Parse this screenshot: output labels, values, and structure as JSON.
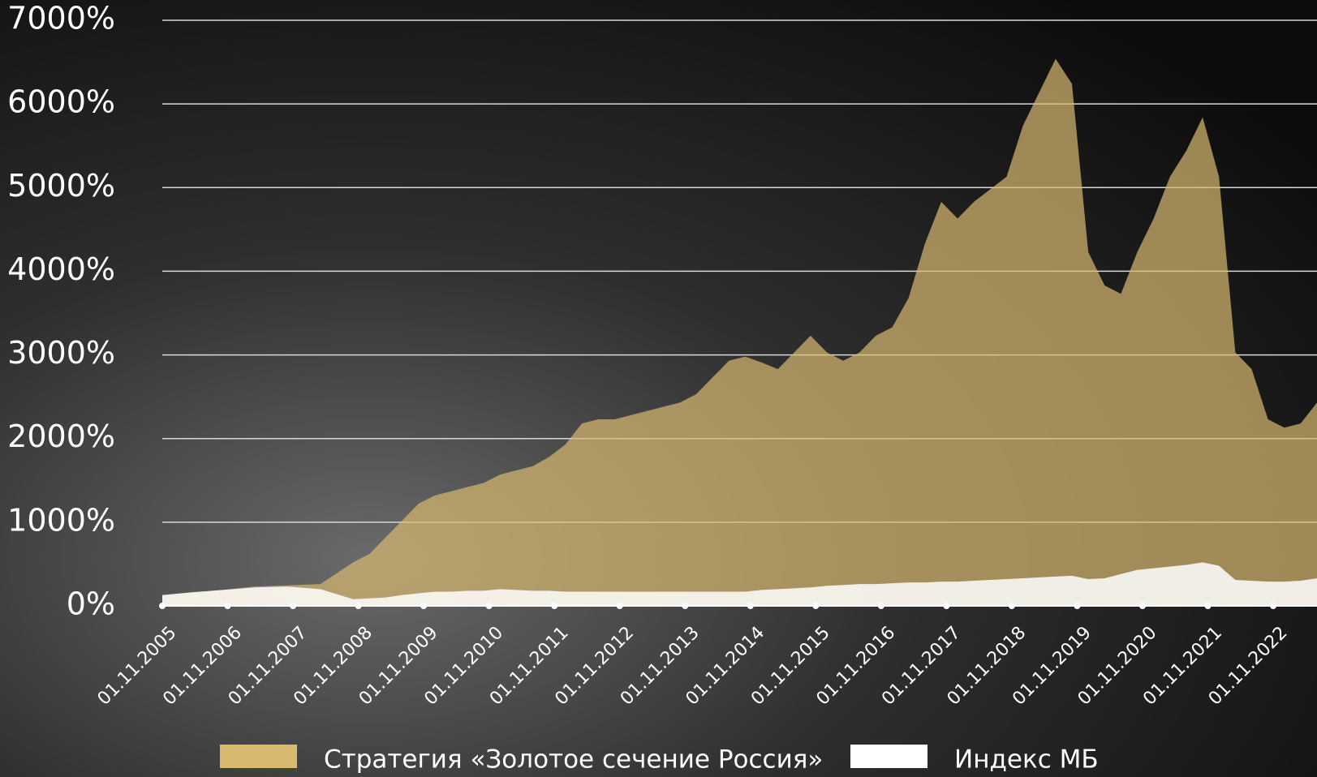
{
  "chart_data": {
    "type": "area",
    "x": [
      2005.83,
      2006.25,
      2006.75,
      2007.25,
      2007.75,
      2008.25,
      2008.75,
      2009.0,
      2009.25,
      2009.5,
      2009.75,
      2010.0,
      2010.25,
      2010.5,
      2010.75,
      2011.0,
      2011.25,
      2011.5,
      2011.75,
      2012.0,
      2012.25,
      2012.5,
      2012.75,
      2013.0,
      2013.25,
      2013.5,
      2013.75,
      2014.0,
      2014.25,
      2014.5,
      2014.75,
      2015.0,
      2015.25,
      2015.5,
      2015.75,
      2016.0,
      2016.25,
      2016.5,
      2016.75,
      2017.0,
      2017.25,
      2017.5,
      2017.75,
      2018.0,
      2018.25,
      2018.5,
      2018.75,
      2019.0,
      2019.25,
      2019.5,
      2019.75,
      2020.0,
      2020.25,
      2020.5,
      2020.75,
      2021.0,
      2021.25,
      2021.5,
      2021.75,
      2022.0,
      2022.25,
      2022.5,
      2022.75,
      2023.0,
      2023.25,
      2023.5
    ],
    "series": [
      {
        "name": "Стратегия «Золотое сечение Россия»",
        "color": "#d9b970",
        "values": [
          120,
          160,
          190,
          230,
          245,
          260,
          520,
          620,
          820,
          1020,
          1220,
          1320,
          1370,
          1420,
          1470,
          1570,
          1620,
          1670,
          1780,
          1930,
          2180,
          2230,
          2230,
          2280,
          2330,
          2380,
          2430,
          2530,
          2730,
          2930,
          2980,
          2910,
          2830,
          3030,
          3230,
          3030,
          2930,
          3030,
          3230,
          3330,
          3680,
          4330,
          4830,
          4630,
          4830,
          4980,
          5130,
          5740,
          6140,
          6540,
          6240,
          4230,
          3830,
          3730,
          4230,
          4630,
          5130,
          5440,
          5840,
          5130,
          3030,
          2830,
          2230,
          2130,
          2180,
          2430
        ]
      },
      {
        "name": "Индекс МБ",
        "color": "#ffffff",
        "values": [
          130,
          160,
          190,
          220,
          230,
          200,
          80,
          90,
          100,
          130,
          150,
          170,
          170,
          180,
          180,
          200,
          190,
          180,
          180,
          170,
          170,
          170,
          170,
          170,
          170,
          170,
          170,
          170,
          170,
          170,
          170,
          190,
          200,
          210,
          220,
          240,
          250,
          260,
          260,
          270,
          280,
          280,
          290,
          290,
          300,
          310,
          320,
          330,
          340,
          350,
          360,
          320,
          330,
          380,
          430,
          450,
          470,
          490,
          520,
          480,
          310,
          300,
          290,
          290,
          300,
          330
        ]
      }
    ],
    "xlim": [
      2005.83,
      2023.5
    ],
    "xticks": [
      {
        "value": 2005.83,
        "label": "01.11.2005"
      },
      {
        "value": 2006.83,
        "label": "01.11.2006"
      },
      {
        "value": 2007.83,
        "label": "01.11.2007"
      },
      {
        "value": 2008.83,
        "label": "01.11.2008"
      },
      {
        "value": 2009.83,
        "label": "01.11.2009"
      },
      {
        "value": 2010.83,
        "label": "01.11.2010"
      },
      {
        "value": 2011.83,
        "label": "01.11.2011"
      },
      {
        "value": 2012.83,
        "label": "01.11.2012"
      },
      {
        "value": 2013.83,
        "label": "01.11.2013"
      },
      {
        "value": 2014.83,
        "label": "01.11.2014"
      },
      {
        "value": 2015.83,
        "label": "01.11.2015"
      },
      {
        "value": 2016.83,
        "label": "01.11.2016"
      },
      {
        "value": 2017.83,
        "label": "01.11.2017"
      },
      {
        "value": 2018.83,
        "label": "01.11.2018"
      },
      {
        "value": 2019.83,
        "label": "01.11.2019"
      },
      {
        "value": 2020.83,
        "label": "01.11.2020"
      },
      {
        "value": 2021.83,
        "label": "01.11.2021"
      },
      {
        "value": 2022.83,
        "label": "01.11.2022"
      }
    ],
    "ylim": [
      0,
      7000
    ],
    "yticks": [
      {
        "value": 0,
        "label": "0%"
      },
      {
        "value": 1000,
        "label": "1000%"
      },
      {
        "value": 2000,
        "label": "2000%"
      },
      {
        "value": 3000,
        "label": "3000%"
      },
      {
        "value": 4000,
        "label": "4000%"
      },
      {
        "value": 5000,
        "label": "5000%"
      },
      {
        "value": 6000,
        "label": "6000%"
      },
      {
        "value": 7000,
        "label": "7000%"
      }
    ],
    "grid": true
  }
}
